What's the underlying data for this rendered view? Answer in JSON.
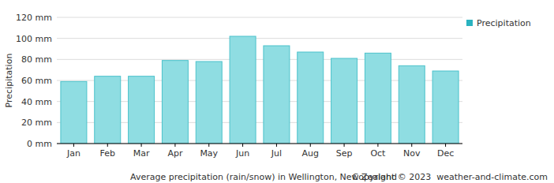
{
  "chart_data": {
    "type": "bar",
    "title": "Average precipitation (rain/snow) in Wellington, New Zealand",
    "annotations": [
      "Copyright © 2023  weather-and-climate.com"
    ],
    "y_label": "Precipitation",
    "categories": [
      "Jan",
      "Feb",
      "Mar",
      "Apr",
      "May",
      "Jun",
      "Jul",
      "Aug",
      "Sep",
      "Oct",
      "Nov",
      "Dec"
    ],
    "series": [
      {
        "name": "Precipitation",
        "color": "#8fdde2",
        "values": [
          59,
          64,
          64,
          79,
          78,
          102,
          93,
          87,
          81,
          86,
          74,
          69
        ]
      }
    ],
    "ylim": [
      0,
      120
    ],
    "yticks": [
      {
        "value": 0,
        "label": "0 mm"
      },
      {
        "value": 20,
        "label": "20 mm"
      },
      {
        "value": 40,
        "label": "40 mm"
      },
      {
        "value": 60,
        "label": "60 mm"
      },
      {
        "value": 80,
        "label": "80 mm"
      },
      {
        "value": 100,
        "label": "100 mm"
      },
      {
        "value": 120,
        "label": "120 mm"
      }
    ],
    "grid": true,
    "legend": "right"
  }
}
